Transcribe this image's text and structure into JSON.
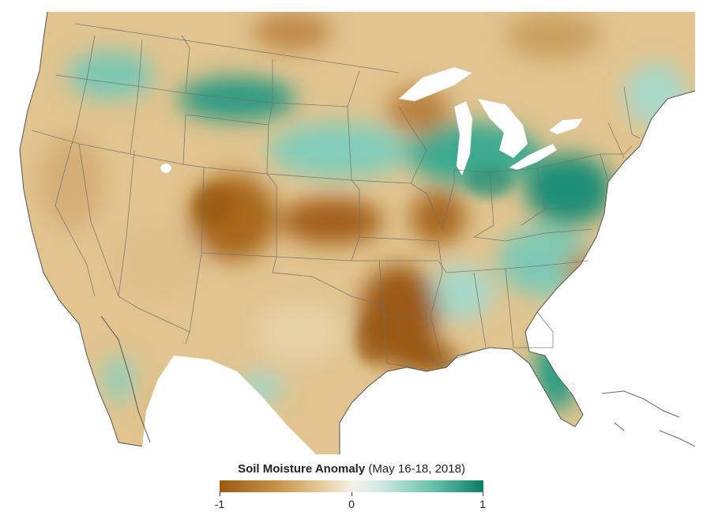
{
  "legend": {
    "title_bold": "Soil Moisture Anomaly",
    "title_rest": " (May 16-18, 2018)",
    "ticks": [
      "-1",
      "0",
      "1"
    ]
  },
  "colors": {
    "dry": "#9a5a10",
    "neutral": "#f7f1e6",
    "wet": "#0a7d66",
    "water": "#ffffff",
    "borders": "#6e6e6e"
  }
}
